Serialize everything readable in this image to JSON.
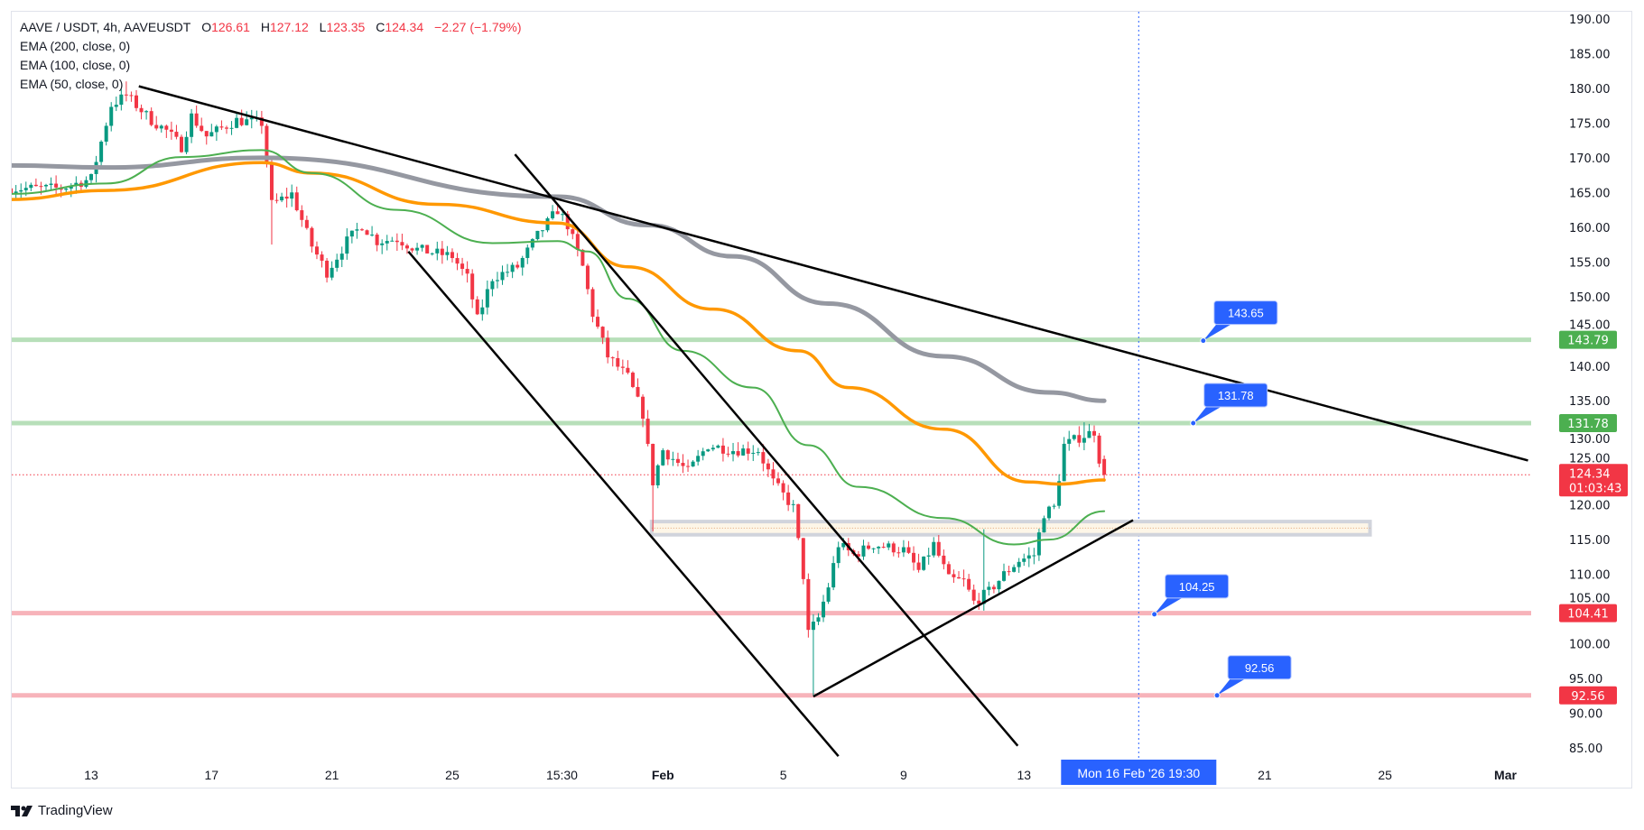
{
  "legend": {
    "symbol": "AAVE / USDT, 4h, AAVEUSDT",
    "o_label": "O",
    "o_value": "126.61",
    "h_label": "H",
    "h_value": "127.12",
    "l_label": "L",
    "l_value": "123.35",
    "c_label": "C",
    "c_value": "124.34",
    "change": "−2.27 (−1.79%)",
    "indicators": [
      "EMA (200, close, 0)",
      "EMA (100, close, 0)",
      "EMA (50, close, 0)"
    ]
  },
  "branding": {
    "name": "TradingView"
  },
  "colors": {
    "up": "#089981",
    "down": "#f23645",
    "ema200": "#9598a1",
    "ema100": "#ff9800",
    "ema50": "#4caf50",
    "support_line": "#f7b3ba",
    "resistance_line": "#b7dfb9",
    "badge_green": "#4caf50",
    "badge_red": "#f23645",
    "callout": "#2962ff",
    "trendline": "#000000",
    "crosshair": "#2962ff"
  },
  "chart_data": {
    "type": "candlestick",
    "symbol": "AAVE / USDT",
    "interval": "4h",
    "ylim": [
      83,
      191
    ],
    "y_ticks": [
      "190.00",
      "185.00",
      "180.00",
      "175.00",
      "170.00",
      "165.00",
      "160.00",
      "155.00",
      "150.00",
      "145.00",
      "140.00",
      "135.00",
      "130.00",
      "125.00",
      "120.00",
      "115.00",
      "110.00",
      "105.00",
      "100.00",
      "95.00",
      "90.00",
      "85.00"
    ],
    "x_ticks": [
      {
        "t": "2026-01-13T00:00",
        "label": "13"
      },
      {
        "t": "2026-01-17T00:00",
        "label": "17"
      },
      {
        "t": "2026-01-21T00:00",
        "label": "21"
      },
      {
        "t": "2026-01-25T00:00",
        "label": "25"
      },
      {
        "t": "2026-01-28T15:30",
        "label": "15:30"
      },
      {
        "t": "2026-02-01T00:00",
        "label": "Feb",
        "bold": true
      },
      {
        "t": "2026-02-05T00:00",
        "label": "5"
      },
      {
        "t": "2026-02-09T00:00",
        "label": "9"
      },
      {
        "t": "2026-02-13T00:00",
        "label": "13"
      },
      {
        "t": "2026-02-21T00:00",
        "label": "21"
      },
      {
        "t": "2026-02-25T00:00",
        "label": "25"
      },
      {
        "t": "2026-03-01T00:00",
        "label": "Mar",
        "bold": true
      }
    ],
    "crosshair": {
      "t": "2026-02-16T19:30",
      "label": "Mon 16 Feb '26  19:30"
    },
    "close_path": [
      [
        "2026-01-10T08:00",
        165.6
      ],
      [
        "2026-01-12T00:00",
        165.6
      ],
      [
        "2026-01-13T00:00",
        167
      ],
      [
        "2026-01-13T16:00",
        177.6
      ],
      [
        "2026-01-14T04:00",
        179
      ],
      [
        "2026-01-15T00:00",
        175.4
      ],
      [
        "2026-01-15T12:00",
        173.9
      ],
      [
        "2026-01-16T00:00",
        171.6
      ],
      [
        "2026-01-16T08:00",
        176
      ],
      [
        "2026-01-16T20:00",
        173.1
      ],
      [
        "2026-01-17T20:00",
        175.4
      ],
      [
        "2026-01-18T16:00",
        175
      ],
      [
        "2026-01-18T20:00",
        169.3
      ],
      [
        "2026-01-19T00:00",
        163.3
      ],
      [
        "2026-01-19T16:00",
        164.8
      ],
      [
        "2026-01-20T08:00",
        157.3
      ],
      [
        "2026-01-20T20:00",
        153.5
      ],
      [
        "2026-01-21T12:00",
        158
      ],
      [
        "2026-01-22T00:00",
        160.3
      ],
      [
        "2026-01-22T12:00",
        158
      ],
      [
        "2026-01-23T04:00",
        158.3
      ],
      [
        "2026-01-23T20:00",
        156.8
      ],
      [
        "2026-01-25T00:00",
        155.8
      ],
      [
        "2026-01-25T12:00",
        152.7
      ],
      [
        "2026-01-25T20:00",
        146.7
      ],
      [
        "2026-01-26T08:00",
        152.7
      ],
      [
        "2026-01-27T04:00",
        154.3
      ],
      [
        "2026-01-27T20:00",
        158.8
      ],
      [
        "2026-01-28T12:00",
        162.5
      ],
      [
        "2026-01-28T20:00",
        160.3
      ],
      [
        "2026-01-29T08:00",
        154.3
      ],
      [
        "2026-01-29T16:00",
        147.5
      ],
      [
        "2026-01-30T04:00",
        141.4
      ],
      [
        "2026-01-30T20:00",
        138.4
      ],
      [
        "2026-01-31T08:00",
        133.1
      ],
      [
        "2026-01-31T16:00",
        123.3
      ],
      [
        "2026-02-01T00:00",
        127.9
      ],
      [
        "2026-02-01T20:00",
        124.8
      ],
      [
        "2026-02-02T12:00",
        128.6
      ],
      [
        "2026-02-03T08:00",
        127.9
      ],
      [
        "2026-02-04T04:00",
        127.9
      ],
      [
        "2026-02-04T16:00",
        123.3
      ],
      [
        "2026-02-05T08:00",
        119.6
      ],
      [
        "2026-02-05T16:00",
        109.8
      ],
      [
        "2026-02-05T20:00",
        101.5
      ],
      [
        "2026-02-06T04:00",
        103.7
      ],
      [
        "2026-02-06T12:00",
        108.3
      ],
      [
        "2026-02-06T20:00",
        114.3
      ],
      [
        "2026-02-07T08:00",
        112.8
      ],
      [
        "2026-02-08T00:00",
        114.3
      ],
      [
        "2026-02-09T00:00",
        113.5
      ],
      [
        "2026-02-09T12:00",
        110.5
      ],
      [
        "2026-02-10T00:00",
        114.3
      ],
      [
        "2026-02-10T12:00",
        109.3
      ],
      [
        "2026-02-11T00:00",
        109
      ],
      [
        "2026-02-11T08:00",
        106
      ],
      [
        "2026-02-11T20:00",
        107.5
      ],
      [
        "2026-02-12T08:00",
        110
      ],
      [
        "2026-02-12T20:00",
        112
      ],
      [
        "2026-02-13T08:00",
        112.8
      ],
      [
        "2026-02-13T16:00",
        118.8
      ],
      [
        "2026-02-14T00:00",
        119.6
      ],
      [
        "2026-02-14T04:00",
        124
      ],
      [
        "2026-02-14T08:00",
        128.6
      ],
      [
        "2026-02-14T20:00",
        129.7
      ],
      [
        "2026-02-15T08:00",
        130.6
      ],
      [
        "2026-02-15T12:00",
        126.61
      ],
      [
        "2026-02-15T16:00",
        124.34
      ]
    ],
    "wick_extremes": [
      {
        "t": "2026-02-06T00:00",
        "low": 92.56
      },
      {
        "t": "2026-01-31T16:00",
        "low": 116.2
      },
      {
        "t": "2026-01-19T00:00",
        "low": 157.5
      },
      {
        "t": "2026-01-14T04:00",
        "high": 181
      },
      {
        "t": "2026-02-15T00:00",
        "high": 131.9
      },
      {
        "t": "2026-02-11T16:00",
        "high": 116.5
      }
    ],
    "last_candle": {
      "t": "2026-02-15T16:00",
      "open": 126.61,
      "high": 127.12,
      "low": 123.35,
      "close": 124.34
    },
    "series": [
      {
        "name": "EMA (200, close, 0)",
        "color_key": "ema200",
        "points": [
          [
            "2026-01-10T08:00",
            168.9
          ],
          [
            "2026-01-13T12:00",
            168.6
          ],
          [
            "2026-01-18T16:00",
            170
          ],
          [
            "2026-01-28T12:00",
            164.4
          ],
          [
            "2026-01-31T12:00",
            160.3
          ],
          [
            "2026-02-03T08:00",
            155.8
          ],
          [
            "2026-02-06T12:00",
            149
          ],
          [
            "2026-02-10T08:00",
            141.4
          ],
          [
            "2026-02-13T20:00",
            136.2
          ],
          [
            "2026-02-15T16:00",
            135
          ]
        ]
      },
      {
        "name": "EMA (100, close, 0)",
        "color_key": "ema100",
        "points": [
          [
            "2026-01-10T08:00",
            164
          ],
          [
            "2026-01-13T12:00",
            165.3
          ],
          [
            "2026-01-18T16:00",
            169.3
          ],
          [
            "2026-01-20T08:00",
            167.8
          ],
          [
            "2026-01-24T12:00",
            163.3
          ],
          [
            "2026-01-28T12:00",
            160.6
          ],
          [
            "2026-01-30T20:00",
            154.3
          ],
          [
            "2026-02-02T16:00",
            148.2
          ],
          [
            "2026-02-05T12:00",
            142.2
          ],
          [
            "2026-02-07T04:00",
            136.9
          ],
          [
            "2026-02-10T08:00",
            130.9
          ],
          [
            "2026-02-13T04:00",
            123.3
          ],
          [
            "2026-02-14T04:00",
            123
          ],
          [
            "2026-02-15T16:00",
            123.6
          ]
        ]
      },
      {
        "name": "EMA (50, close, 0)",
        "color_key": "ema50",
        "points": [
          [
            "2026-01-10T08:00",
            164.8
          ],
          [
            "2026-01-13T12:00",
            166.3
          ],
          [
            "2026-01-16T00:00",
            170.1
          ],
          [
            "2026-01-18T16:00",
            171.1
          ],
          [
            "2026-01-20T08:00",
            167.8
          ],
          [
            "2026-01-23T04:00",
            162.5
          ],
          [
            "2026-01-26T08:00",
            157.7
          ],
          [
            "2026-01-28T12:00",
            158
          ],
          [
            "2026-01-29T12:00",
            156.5
          ],
          [
            "2026-01-30T20:00",
            149.7
          ],
          [
            "2026-02-01T16:00",
            142.2
          ],
          [
            "2026-02-04T00:00",
            136.9
          ],
          [
            "2026-02-05T20:00",
            128.6
          ],
          [
            "2026-02-07T12:00",
            122.6
          ],
          [
            "2026-02-10T08:00",
            118.1
          ],
          [
            "2026-02-12T16:00",
            114.3
          ],
          [
            "2026-02-13T20:00",
            115
          ],
          [
            "2026-02-15T16:00",
            119.1
          ]
        ]
      }
    ],
    "trendlines": [
      [
        [
          "2026-01-14T14:00",
          180.3
        ],
        [
          "2026-03-01T18:00",
          126.4
        ]
      ],
      [
        [
          "2026-01-23T13:00",
          156.5
        ],
        [
          "2026-02-06T20:00",
          83.8
        ]
      ],
      [
        [
          "2026-01-27T02:00",
          170.5
        ],
        [
          "2026-02-12T19:00",
          85.3
        ]
      ],
      [
        [
          "2026-02-06T00:00",
          92.4
        ],
        [
          "2026-02-16T15:00",
          117.8
        ]
      ]
    ],
    "horizontal_levels": [
      {
        "price": 143.79,
        "label": "143.79",
        "kind": "resistance"
      },
      {
        "price": 131.78,
        "label": "131.78",
        "kind": "resistance"
      },
      {
        "price": 104.41,
        "label": "104.41",
        "kind": "support"
      },
      {
        "price": 92.56,
        "label": "92.56",
        "kind": "support"
      }
    ],
    "zone": {
      "t_start": "2026-01-31T15:00",
      "t_end": "2026-02-24T12:00",
      "price_top": 117.6,
      "price_bottom": 115.7
    },
    "callouts": [
      {
        "t": "2026-02-18T23:00",
        "price": 143.65,
        "label": "143.65"
      },
      {
        "t": "2026-02-18T15:00",
        "price": 131.78,
        "label": "131.78"
      },
      {
        "t": "2026-02-17T08:00",
        "price": 104.25,
        "label": "104.25"
      },
      {
        "t": "2026-02-19T10:00",
        "price": 92.56,
        "label": "92.56"
      }
    ],
    "current_price": {
      "price": 124.34,
      "label": "124.34",
      "countdown": "01:03:43"
    }
  }
}
